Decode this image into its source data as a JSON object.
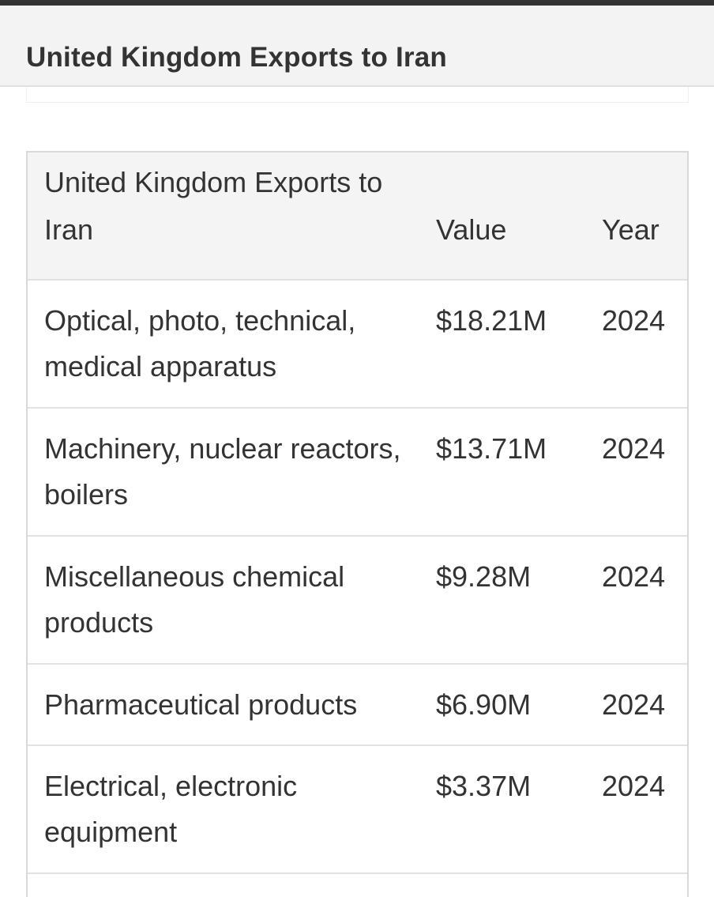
{
  "section": {
    "title": "United Kingdom Exports to Iran"
  },
  "table": {
    "headers": {
      "name": "United Kingdom Exports to Iran",
      "value": "Value",
      "year": "Year"
    },
    "rows": [
      {
        "name": "Optical, photo, technical, medical apparatus",
        "value": "$18.21M",
        "year": "2024"
      },
      {
        "name": "Machinery, nuclear reactors, boilers",
        "value": "$13.71M",
        "year": "2024"
      },
      {
        "name": "Miscellaneous chemical products",
        "value": "$9.28M",
        "year": "2024"
      },
      {
        "name": "Pharmaceutical products",
        "value": "$6.90M",
        "year": "2024"
      },
      {
        "name": "Electrical, electronic equipment",
        "value": "$3.37M",
        "year": "2024"
      }
    ]
  }
}
